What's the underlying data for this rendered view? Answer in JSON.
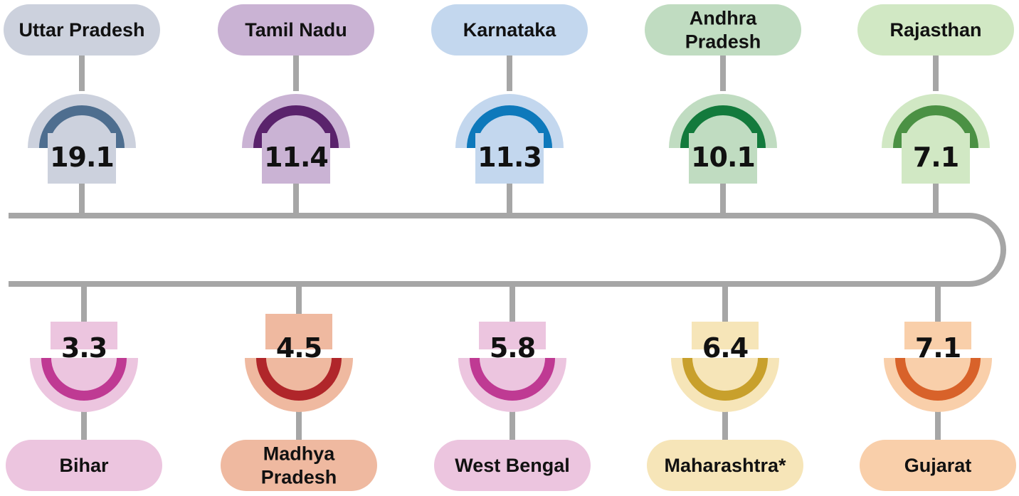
{
  "top": [
    {
      "label": [
        "Uttar Pradesh"
      ],
      "value": "19.1",
      "pill": "#ccd1dd",
      "arc": "#4e6e8f"
    },
    {
      "label": [
        "Tamil Nadu"
      ],
      "value": "11.4",
      "pill": "#cab3d4",
      "arc": "#5a236c"
    },
    {
      "label": [
        "Karnataka"
      ],
      "value": "11.3",
      "pill": "#c3d7ee",
      "arc": "#0e79bb"
    },
    {
      "label": [
        "Andhra",
        "Pradesh"
      ],
      "value": "10.1",
      "pill": "#c0dcc1",
      "arc": "#137a3c"
    },
    {
      "label": [
        "Rajasthan"
      ],
      "value": "7.1",
      "pill": "#d1e8c4",
      "arc": "#4b9144"
    }
  ],
  "bottom": [
    {
      "label": [
        "Bihar"
      ],
      "value": "3.3",
      "pill": "#ecc5df",
      "arc": "#bf3a93"
    },
    {
      "label": [
        "Madhya",
        "Pradesh"
      ],
      "value": "4.5",
      "pill": "#efb9a0",
      "arc": "#b0262a"
    },
    {
      "label": [
        "West Bengal"
      ],
      "value": "5.8",
      "pill": "#ecc5df",
      "arc": "#bf3a93"
    },
    {
      "label": [
        "Maharashtra*"
      ],
      "value": "6.4",
      "pill": "#f6e5b8",
      "arc": "#c8a02c"
    },
    {
      "label": [
        "Gujarat"
      ],
      "value": "7.1",
      "pill": "#f9cfaa",
      "arc": "#d8622a"
    }
  ],
  "line_color": "#a6a6a6"
}
